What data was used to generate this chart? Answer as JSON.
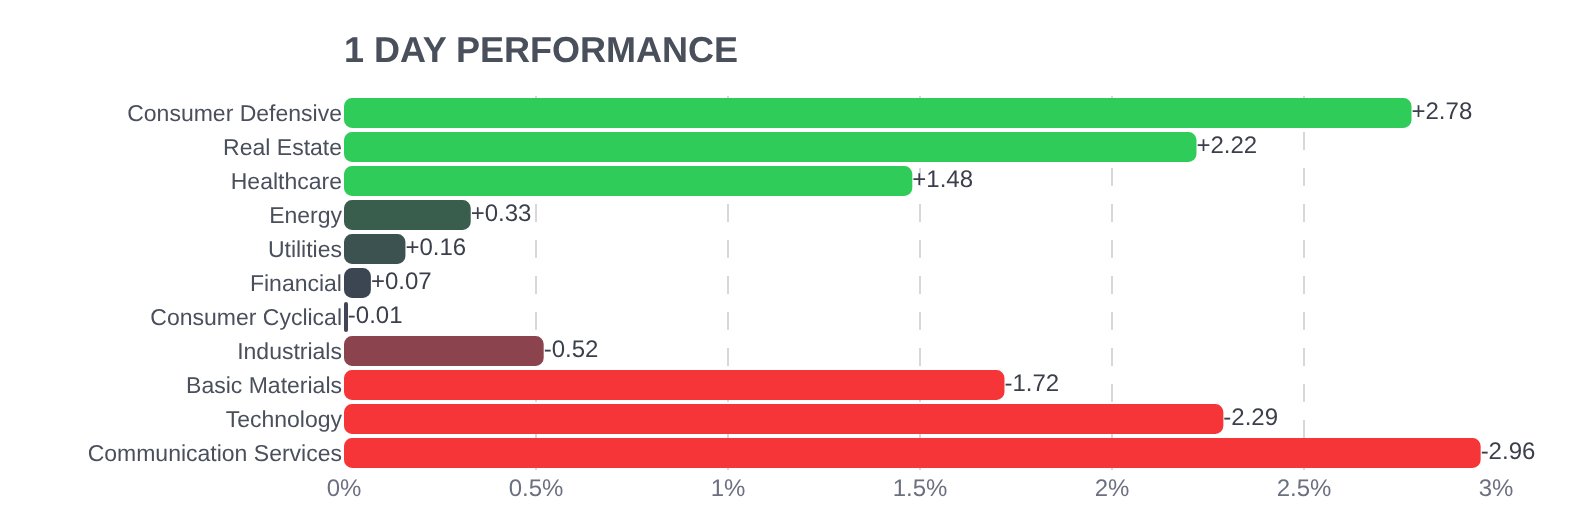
{
  "chart_data": {
    "type": "bar",
    "orientation": "horizontal",
    "title": "1 DAY PERFORMANCE",
    "categories": [
      "Consumer Defensive",
      "Real Estate",
      "Healthcare",
      "Energy",
      "Utilities",
      "Financial",
      "Consumer Cyclical",
      "Industrials",
      "Basic Materials",
      "Technology",
      "Communication Services"
    ],
    "values": [
      2.78,
      2.22,
      1.48,
      0.33,
      0.16,
      0.07,
      -0.01,
      -0.52,
      -1.72,
      -2.29,
      -2.96
    ],
    "base": [
      0,
      0,
      0,
      0,
      0,
      0,
      0.01,
      0.52,
      1.72,
      2.29,
      2.96
    ],
    "value_labels": [
      "+2.78",
      "+2.22",
      "+1.48",
      "+0.33",
      "+0.16",
      "+0.07",
      "-0.01",
      "-0.52",
      "-1.72",
      "-2.29",
      "-2.96"
    ],
    "colors": [
      "#30cc5a",
      "#30cc5a",
      "#30cc5a",
      "#3a5e4e",
      "#3b5250",
      "#3c4652",
      "#414554",
      "#8b444e",
      "#f63538",
      "#f63538",
      "#f63538"
    ],
    "xlim": [
      0,
      3
    ],
    "xticks": [
      {
        "value": 0,
        "label": "0%"
      },
      {
        "value": 0.5,
        "label": "0.5%"
      },
      {
        "value": 1,
        "label": "1%"
      },
      {
        "value": 1.5,
        "label": "1.5%"
      },
      {
        "value": 2,
        "label": "2%"
      },
      {
        "value": 2.5,
        "label": "2.5%"
      },
      {
        "value": 3,
        "label": "3%"
      }
    ],
    "grid": "x"
  }
}
